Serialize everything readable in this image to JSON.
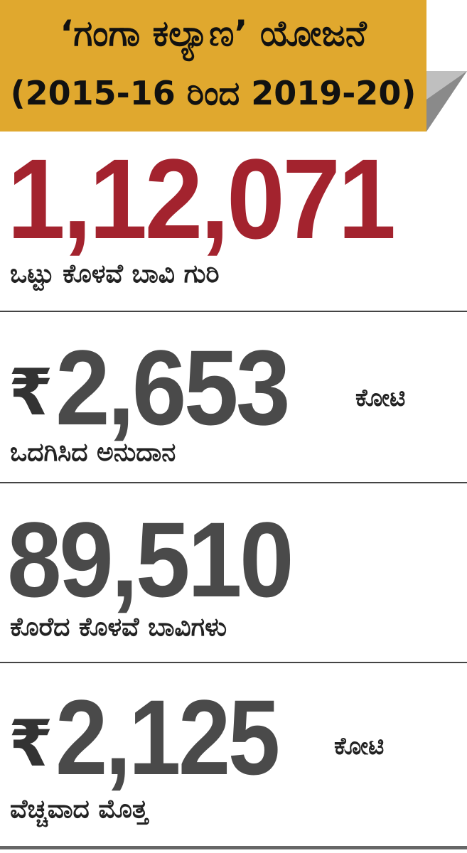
{
  "header": {
    "title": "‘ಗಂಗಾ ಕಲ್ಯಾಣ’ ಯೋಜನೆ",
    "subtitle": "(2015-16 ರಿಂದ 2019-20)"
  },
  "stats": [
    {
      "value": "1,12,071",
      "label": "ಒಟ್ಟು ಕೊಳವೆ ಬಾವಿ ಗುರಿ"
    },
    {
      "currency": "₹",
      "value": "2,653",
      "unit": "ಕೋಟಿ",
      "label": "ಒದಗಿಸಿದ ಅನುದಾನ"
    },
    {
      "value": "89,510",
      "label": "ಕೊರೆದ ಕೊಳವೆ ಬಾವಿಗಳು"
    },
    {
      "currency": "₹",
      "value": "2,125",
      "unit": "ಕೋಟಿ",
      "label": "ವೆಚ್ಚವಾದ ಮೊತ್ತ"
    }
  ]
}
